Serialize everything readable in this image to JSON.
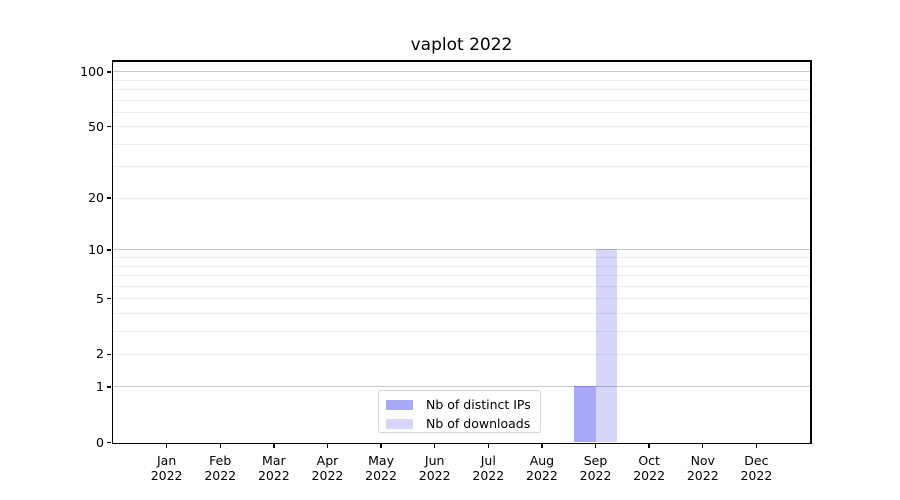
{
  "chart_data": {
    "type": "bar",
    "title": "vaplot 2022",
    "categories": [
      "Jan\n2022",
      "Feb\n2022",
      "Mar\n2022",
      "Apr\n2022",
      "May\n2022",
      "Jun\n2022",
      "Jul\n2022",
      "Aug\n2022",
      "Sep\n2022",
      "Oct\n2022",
      "Nov\n2022",
      "Dec\n2022"
    ],
    "series": [
      {
        "name": "Nb of distinct IPs",
        "color": "rgba(0,0,235,0.34)",
        "values": [
          0,
          0,
          0,
          0,
          0,
          0,
          0,
          0,
          1,
          0,
          0,
          0
        ]
      },
      {
        "name": "Nb of downloads",
        "color": "rgba(0,0,220,0.16)",
        "values": [
          0,
          0,
          0,
          0,
          0,
          0,
          0,
          0,
          10,
          0,
          0,
          0
        ]
      }
    ],
    "xlabel": "",
    "ylabel": "",
    "y_axis": {
      "scale": "symlog-log1p",
      "ticks": [
        0,
        1,
        2,
        5,
        10,
        20,
        50,
        100
      ],
      "ylim": [
        0,
        114
      ],
      "gridlines_major": [
        1,
        10,
        100
      ],
      "gridlines_minor": [
        2,
        3,
        4,
        5,
        6,
        7,
        8,
        9,
        20,
        30,
        40,
        50,
        60,
        70,
        80,
        90
      ]
    },
    "grid": true,
    "legend_position": "lower center inside axes"
  },
  "colors": {
    "background": "#ffffff",
    "axis": "#000000",
    "grid_major": "#c9c9c9",
    "grid_minor": "#ececec",
    "legend_border": "#d5d5d5",
    "text": "#000000"
  }
}
